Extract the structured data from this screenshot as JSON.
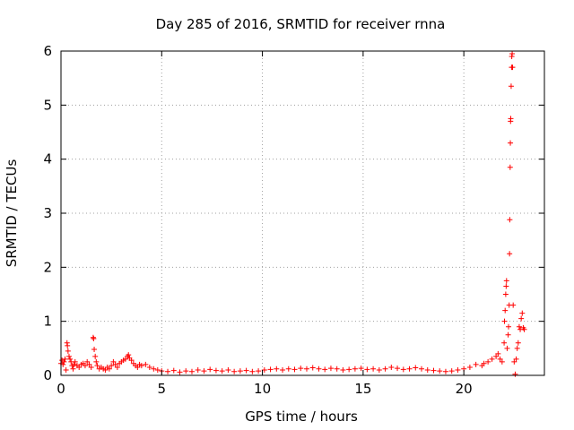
{
  "chart_data": {
    "type": "scatter",
    "title": "Day 285 of 2016, SRMTID for receiver rnna",
    "xlabel": "GPS time / hours",
    "ylabel": "SRMTID / TECUs",
    "xlim": [
      0,
      24
    ],
    "ylim": [
      0,
      6
    ],
    "xticks": [
      "0",
      "5",
      "10",
      "15",
      "20"
    ],
    "yticks": [
      "0",
      "1",
      "2",
      "3",
      "4",
      "5",
      "6"
    ],
    "grid": true,
    "marker": "plus",
    "color": "#ff0000",
    "series": [
      {
        "points": [
          [
            0.0,
            0.22
          ],
          [
            0.05,
            0.28
          ],
          [
            0.1,
            0.2
          ],
          [
            0.15,
            0.25
          ],
          [
            0.2,
            0.3
          ],
          [
            0.25,
            0.1
          ],
          [
            0.3,
            0.6
          ],
          [
            0.32,
            0.55
          ],
          [
            0.35,
            0.45
          ],
          [
            0.4,
            0.35
          ],
          [
            0.45,
            0.3
          ],
          [
            0.5,
            0.25
          ],
          [
            0.55,
            0.18
          ],
          [
            0.6,
            0.12
          ],
          [
            0.65,
            0.2
          ],
          [
            0.7,
            0.25
          ],
          [
            0.8,
            0.18
          ],
          [
            0.9,
            0.15
          ],
          [
            1.0,
            0.2
          ],
          [
            1.1,
            0.22
          ],
          [
            1.2,
            0.18
          ],
          [
            1.3,
            0.25
          ],
          [
            1.4,
            0.2
          ],
          [
            1.5,
            0.15
          ],
          [
            1.6,
            0.7
          ],
          [
            1.62,
            0.68
          ],
          [
            1.65,
            0.48
          ],
          [
            1.7,
            0.35
          ],
          [
            1.75,
            0.25
          ],
          [
            1.8,
            0.18
          ],
          [
            1.9,
            0.12
          ],
          [
            2.0,
            0.15
          ],
          [
            2.1,
            0.12
          ],
          [
            2.2,
            0.1
          ],
          [
            2.3,
            0.15
          ],
          [
            2.4,
            0.12
          ],
          [
            2.5,
            0.18
          ],
          [
            2.6,
            0.25
          ],
          [
            2.7,
            0.2
          ],
          [
            2.8,
            0.15
          ],
          [
            2.9,
            0.22
          ],
          [
            3.0,
            0.25
          ],
          [
            3.1,
            0.28
          ],
          [
            3.2,
            0.3
          ],
          [
            3.3,
            0.35
          ],
          [
            3.35,
            0.38
          ],
          [
            3.4,
            0.32
          ],
          [
            3.5,
            0.28
          ],
          [
            3.6,
            0.22
          ],
          [
            3.7,
            0.18
          ],
          [
            3.8,
            0.15
          ],
          [
            3.9,
            0.2
          ],
          [
            4.0,
            0.18
          ],
          [
            4.2,
            0.2
          ],
          [
            4.4,
            0.15
          ],
          [
            4.6,
            0.12
          ],
          [
            4.8,
            0.1
          ],
          [
            5.0,
            0.08
          ],
          [
            5.3,
            0.07
          ],
          [
            5.6,
            0.09
          ],
          [
            5.9,
            0.06
          ],
          [
            6.2,
            0.08
          ],
          [
            6.5,
            0.07
          ],
          [
            6.8,
            0.1
          ],
          [
            7.1,
            0.08
          ],
          [
            7.4,
            0.11
          ],
          [
            7.7,
            0.09
          ],
          [
            8.0,
            0.08
          ],
          [
            8.3,
            0.1
          ],
          [
            8.6,
            0.07
          ],
          [
            8.9,
            0.08
          ],
          [
            9.2,
            0.09
          ],
          [
            9.5,
            0.07
          ],
          [
            9.8,
            0.08
          ],
          [
            10.1,
            0.1
          ],
          [
            10.4,
            0.11
          ],
          [
            10.7,
            0.12
          ],
          [
            11.0,
            0.1
          ],
          [
            11.3,
            0.12
          ],
          [
            11.6,
            0.11
          ],
          [
            11.9,
            0.13
          ],
          [
            12.2,
            0.12
          ],
          [
            12.5,
            0.14
          ],
          [
            12.8,
            0.12
          ],
          [
            13.1,
            0.11
          ],
          [
            13.4,
            0.13
          ],
          [
            13.7,
            0.12
          ],
          [
            14.0,
            0.1
          ],
          [
            14.3,
            0.11
          ],
          [
            14.6,
            0.12
          ],
          [
            14.9,
            0.13
          ],
          [
            15.2,
            0.11
          ],
          [
            15.5,
            0.12
          ],
          [
            15.8,
            0.1
          ],
          [
            16.1,
            0.12
          ],
          [
            16.4,
            0.15
          ],
          [
            16.7,
            0.13
          ],
          [
            17.0,
            0.11
          ],
          [
            17.3,
            0.12
          ],
          [
            17.6,
            0.14
          ],
          [
            17.9,
            0.12
          ],
          [
            18.2,
            0.1
          ],
          [
            18.5,
            0.09
          ],
          [
            18.8,
            0.08
          ],
          [
            19.1,
            0.07
          ],
          [
            19.4,
            0.08
          ],
          [
            19.7,
            0.1
          ],
          [
            20.0,
            0.12
          ],
          [
            20.3,
            0.15
          ],
          [
            20.6,
            0.2
          ],
          [
            20.9,
            0.18
          ],
          [
            21.0,
            0.22
          ],
          [
            21.2,
            0.25
          ],
          [
            21.4,
            0.3
          ],
          [
            21.6,
            0.35
          ],
          [
            21.7,
            0.4
          ],
          [
            21.8,
            0.3
          ],
          [
            21.9,
            0.25
          ],
          [
            22.0,
            0.6
          ],
          [
            22.02,
            1.0
          ],
          [
            22.05,
            1.2
          ],
          [
            22.08,
            1.5
          ],
          [
            22.1,
            1.65
          ],
          [
            22.12,
            1.75
          ],
          [
            22.15,
            0.5
          ],
          [
            22.2,
            0.75
          ],
          [
            22.22,
            0.9
          ],
          [
            22.25,
            1.3
          ],
          [
            22.27,
            2.25
          ],
          [
            22.28,
            2.88
          ],
          [
            22.3,
            3.85
          ],
          [
            22.31,
            4.3
          ],
          [
            22.32,
            4.7
          ],
          [
            22.33,
            4.75
          ],
          [
            22.35,
            5.35
          ],
          [
            22.37,
            5.7
          ],
          [
            22.38,
            5.9
          ],
          [
            22.4,
            5.95
          ],
          [
            22.42,
            5.7
          ],
          [
            22.45,
            1.3
          ],
          [
            22.5,
            0.25
          ],
          [
            22.55,
            0.02
          ],
          [
            22.6,
            0.3
          ],
          [
            22.65,
            0.5
          ],
          [
            22.7,
            0.6
          ],
          [
            22.75,
            0.9
          ],
          [
            22.8,
            0.85
          ],
          [
            22.85,
            1.05
          ],
          [
            22.9,
            1.15
          ],
          [
            22.95,
            0.88
          ],
          [
            23.0,
            0.85
          ]
        ]
      }
    ]
  }
}
